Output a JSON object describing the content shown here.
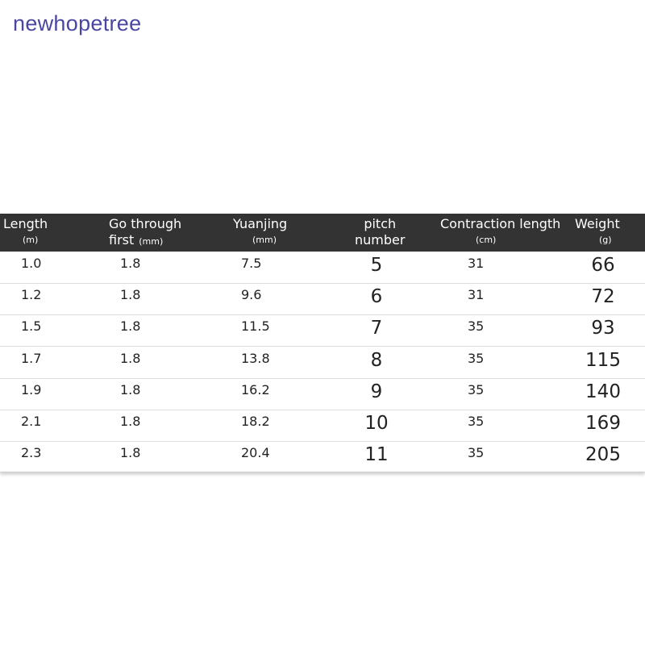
{
  "watermark": "newhopetree",
  "table": {
    "header": [
      {
        "lines": [
          "Length"
        ],
        "unit": "(m)"
      },
      {
        "lines": [
          "Go through",
          "first"
        ],
        "unit": "(mm)"
      },
      {
        "lines": [
          "Yuanjing"
        ],
        "unit": "(mm)"
      },
      {
        "lines": [
          "pitch",
          "number"
        ]
      },
      {
        "lines": [
          "Contraction length"
        ],
        "unit": "(cm)"
      },
      {
        "lines": [
          "Weight"
        ],
        "unit": "(g)"
      }
    ],
    "rows": [
      [
        "1.0",
        "1.8",
        "7.5",
        "5",
        "31",
        "66"
      ],
      [
        "1.2",
        "1.8",
        "9.6",
        "6",
        "31",
        "72"
      ],
      [
        "1.5",
        "1.8",
        "11.5",
        "7",
        "35",
        "93"
      ],
      [
        "1.7",
        "1.8",
        "13.8",
        "8",
        "35",
        "115"
      ],
      [
        "1.9",
        "1.8",
        "16.2",
        "9",
        "35",
        "140"
      ],
      [
        "2.1",
        "1.8",
        "18.2",
        "10",
        "35",
        "169"
      ],
      [
        "2.3",
        "1.8",
        "20.4",
        "11",
        "35",
        "205"
      ]
    ]
  }
}
